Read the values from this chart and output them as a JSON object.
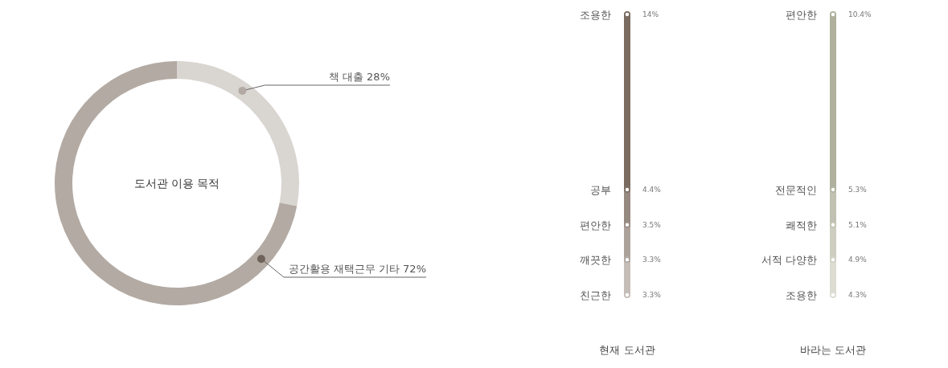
{
  "chart_data": [
    {
      "type": "donut",
      "title": "도서관 이용 목적",
      "categories": [
        "책 대출",
        "공간활용 재택근무 기타"
      ],
      "values": [
        28,
        72
      ],
      "colors": [
        "#d9d5d1",
        "#b3aaa3"
      ],
      "value_labels": [
        "28%",
        "72%"
      ]
    },
    {
      "type": "other",
      "xlabel": "현재 도서관",
      "categories": [
        "조용한",
        "공부",
        "편안한",
        "깨끗한",
        "친근한"
      ],
      "values": [
        14,
        4.4,
        3.5,
        3.3,
        3.3
      ],
      "value_labels": [
        "14%",
        "4.4%",
        "3.5%",
        "3.3%",
        "3.3%"
      ],
      "colors": [
        "#7a6c61",
        "#7a6c61",
        "#968980",
        "#aca29b",
        "#c5bdb7"
      ]
    },
    {
      "type": "other",
      "xlabel": "바라는 도서관",
      "categories": [
        "편안한",
        "전문적인",
        "쾌적한",
        "서적 다양한",
        "조용한"
      ],
      "values": [
        10.4,
        5.3,
        5.1,
        4.9,
        4.3
      ],
      "value_labels": [
        "10.4%",
        "5.3%",
        "5.1%",
        "4.9%",
        "4.3%"
      ],
      "colors": [
        "#afb19c",
        "#afb19c",
        "#c0c1b0",
        "#cdcdc0",
        "#dcdcd2"
      ]
    }
  ]
}
